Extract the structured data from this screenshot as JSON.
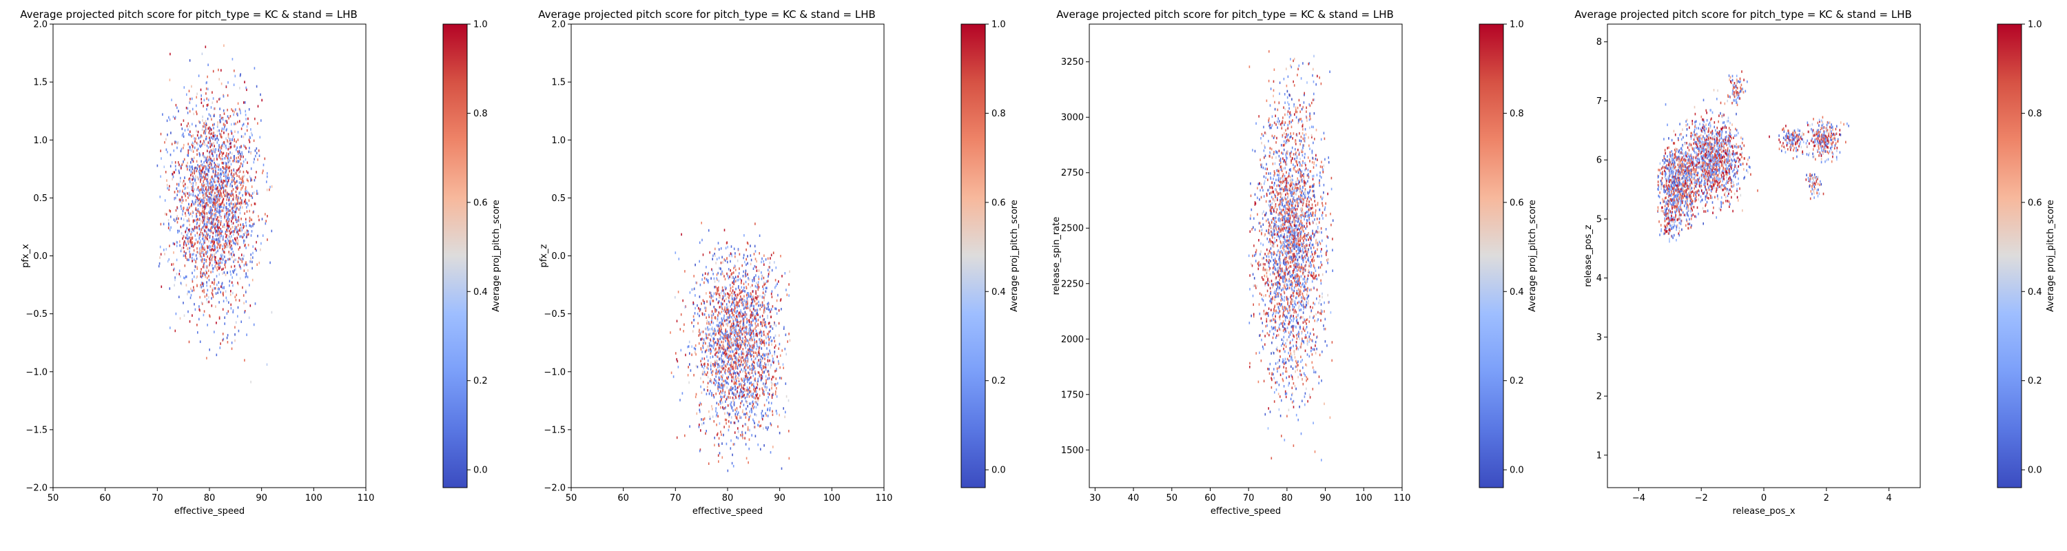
{
  "figure": {
    "panels": [
      {
        "title": "Average projected pitch score for pitch_type = KC & stand = LHB",
        "xlabel": "effective_speed",
        "ylabel": "pfx_x",
        "xlim": [
          50,
          110
        ],
        "ylim": [
          -2.0,
          2.0
        ],
        "xticks": [
          50,
          60,
          70,
          80,
          90,
          100,
          110
        ],
        "yticks": [
          -2.0,
          -1.5,
          -1.0,
          -0.5,
          0.0,
          0.5,
          1.0,
          1.5,
          2.0
        ],
        "ytick_labels": [
          "−2.0",
          "−1.5",
          "−1.0",
          "−0.5",
          "0.0",
          "0.5",
          "1.0",
          "1.5",
          "2.0"
        ],
        "colorbar": {
          "label": "Average proj_pitch_score",
          "ticks": [
            0.0,
            0.2,
            0.4,
            0.6,
            0.8,
            1.0
          ],
          "tick_labels": [
            "0.0",
            "0.2",
            "0.4",
            "0.6",
            "0.8",
            "1.0"
          ]
        }
      },
      {
        "title": "Average projected pitch score for pitch_type = KC & stand = LHB",
        "xlabel": "effective_speed",
        "ylabel": "pfx_z",
        "xlim": [
          50,
          110
        ],
        "ylim": [
          -2.0,
          2.0
        ],
        "xticks": [
          50,
          60,
          70,
          80,
          90,
          100,
          110
        ],
        "yticks": [
          -2.0,
          -1.5,
          -1.0,
          -0.5,
          0.0,
          0.5,
          1.0,
          1.5,
          2.0
        ],
        "ytick_labels": [
          "−2.0",
          "−1.5",
          "−1.0",
          "−0.5",
          "0.0",
          "0.5",
          "1.0",
          "1.5",
          "2.0"
        ],
        "colorbar": {
          "label": "Average proj_pitch_score",
          "ticks": [
            0.0,
            0.2,
            0.4,
            0.6,
            0.8,
            1.0
          ],
          "tick_labels": [
            "0.0",
            "0.2",
            "0.4",
            "0.6",
            "0.8",
            "1.0"
          ]
        }
      },
      {
        "title": "Average projected pitch score for pitch_type = KC & stand = LHB",
        "xlabel": "effective_speed",
        "ylabel": "release_spin_rate",
        "xlim": [
          28.5,
          110
        ],
        "ylim": [
          1330,
          3420
        ],
        "xticks": [
          30,
          40,
          50,
          60,
          70,
          80,
          90,
          100,
          110
        ],
        "yticks": [
          1500,
          1750,
          2000,
          2250,
          2500,
          2750,
          3000,
          3250
        ],
        "ytick_labels": [
          "1500",
          "1750",
          "2000",
          "2250",
          "2500",
          "2750",
          "3000",
          "3250"
        ],
        "colorbar": {
          "label": "Average proj_pitch_score",
          "ticks": [
            0.0,
            0.2,
            0.4,
            0.6,
            0.8,
            1.0
          ],
          "tick_labels": [
            "0.0",
            "0.2",
            "0.4",
            "0.6",
            "0.8",
            "1.0"
          ]
        }
      },
      {
        "title": "Average projected pitch score for pitch_type = KC & stand = LHB",
        "xlabel": "release_pos_x",
        "ylabel": "release_pos_z",
        "xlim": [
          -5,
          5
        ],
        "ylim": [
          0.45,
          8.3
        ],
        "xticks": [
          -4,
          -2,
          0,
          2,
          4
        ],
        "xtick_labels": [
          "−4",
          "−2",
          "0",
          "2",
          "4"
        ],
        "yticks": [
          1,
          2,
          3,
          4,
          5,
          6,
          7,
          8
        ],
        "ytick_labels": [
          "1",
          "2",
          "3",
          "4",
          "5",
          "6",
          "7",
          "8"
        ],
        "colorbar": {
          "label": "Average proj_pitch_score",
          "ticks": [
            0.0,
            0.2,
            0.4,
            0.6,
            0.8,
            1.0
          ],
          "tick_labels": [
            "0.0",
            "0.2",
            "0.4",
            "0.6",
            "0.8",
            "1.0"
          ]
        }
      }
    ]
  },
  "chart_data": [
    {
      "type": "heatmap",
      "x_variable": "effective_speed",
      "y_variable": "pfx_x",
      "value_variable": "Average proj_pitch_score",
      "colormap": "coolwarm",
      "color_range": [
        -0.04,
        1.0
      ],
      "clusters": [
        {
          "x_center": 81,
          "y_center": 0.45,
          "x_spread": 4.2,
          "y_spread": 0.45,
          "count": 2400,
          "mean_value": 0.55
        }
      ],
      "x_range": [
        70,
        92
      ],
      "y_range": [
        -1.4,
        1.9
      ]
    },
    {
      "type": "heatmap",
      "x_variable": "effective_speed",
      "y_variable": "pfx_z",
      "value_variable": "Average proj_pitch_score",
      "colormap": "coolwarm",
      "color_range": [
        -0.04,
        1.0
      ],
      "clusters": [
        {
          "x_center": 82,
          "y_center": -0.75,
          "x_spread": 4.2,
          "y_spread": 0.4,
          "count": 2200,
          "mean_value": 0.5
        }
      ],
      "x_range": [
        69,
        92
      ],
      "y_range": [
        -1.9,
        0.3
      ]
    },
    {
      "type": "heatmap",
      "x_variable": "effective_speed",
      "y_variable": "release_spin_rate",
      "value_variable": "Average proj_pitch_score",
      "colormap": "coolwarm",
      "color_range": [
        -0.04,
        1.0
      ],
      "clusters": [
        {
          "x_center": 81,
          "y_center": 2450,
          "x_spread": 4.2,
          "y_spread": 320,
          "count": 2600,
          "mean_value": 0.5
        }
      ],
      "x_range": [
        70,
        92
      ],
      "y_range": [
        1420,
        3300
      ]
    },
    {
      "type": "heatmap",
      "x_variable": "release_pos_x",
      "y_variable": "release_pos_z",
      "value_variable": "Average proj_pitch_score",
      "colormap": "coolwarm",
      "color_range": [
        -0.04,
        1.0
      ],
      "clusters": [
        {
          "x_center": -2.7,
          "y_center": 5.6,
          "x_spread": 0.35,
          "y_spread": 0.33,
          "count": 900,
          "mean_value": 0.5
        },
        {
          "x_center": -1.6,
          "y_center": 6.0,
          "x_spread": 0.45,
          "y_spread": 0.35,
          "count": 1100,
          "mean_value": 0.6
        },
        {
          "x_center": -3.0,
          "y_center": 4.95,
          "x_spread": 0.15,
          "y_spread": 0.15,
          "count": 120,
          "mean_value": 0.7
        },
        {
          "x_center": -0.9,
          "y_center": 7.2,
          "x_spread": 0.12,
          "y_spread": 0.12,
          "count": 80,
          "mean_value": 0.6
        },
        {
          "x_center": 1.9,
          "y_center": 6.35,
          "x_spread": 0.25,
          "y_spread": 0.15,
          "count": 260,
          "mean_value": 0.55
        },
        {
          "x_center": 0.9,
          "y_center": 6.35,
          "x_spread": 0.2,
          "y_spread": 0.12,
          "count": 120,
          "mean_value": 0.55
        },
        {
          "x_center": 1.6,
          "y_center": 5.6,
          "x_spread": 0.12,
          "y_spread": 0.1,
          "count": 60,
          "mean_value": 0.4
        }
      ],
      "x_range": [
        -3.4,
        3.1
      ],
      "y_range": [
        4.6,
        7.5
      ]
    }
  ]
}
